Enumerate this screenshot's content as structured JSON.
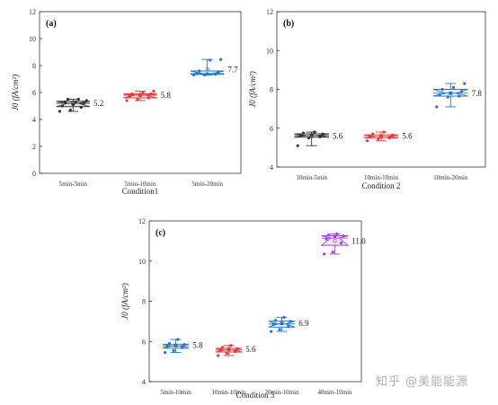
{
  "watermark": "知乎 @美能能源",
  "colors": {
    "black": "#333333",
    "red": "#e03a3a",
    "blue": "#1f77c9",
    "purple": "#9b44d6"
  },
  "chart_data": [
    {
      "type": "box-swarm",
      "panel_label": "(a)",
      "title": "",
      "xlabel": "Condition1",
      "ylabel": "J0 (fA/cm²)",
      "ylim": [
        0,
        12
      ],
      "yticks": [
        0,
        2,
        4,
        6,
        8,
        10,
        12
      ],
      "categories": [
        "5min-5min",
        "5min-10min",
        "5min-20min"
      ],
      "series": [
        {
          "color": "black",
          "mean": 5.2,
          "mean_label": "5.2",
          "points": [
            4.6,
            4.7,
            4.9,
            5.0,
            5.1,
            5.2,
            5.3,
            5.3,
            5.4,
            5.5,
            5.5
          ]
        },
        {
          "color": "red",
          "mean": 5.8,
          "mean_label": "5.8",
          "points": [
            5.4,
            5.5,
            5.6,
            5.7,
            5.8,
            5.9,
            5.9,
            6.0,
            6.1
          ]
        },
        {
          "color": "blue",
          "mean": 7.7,
          "mean_label": "7.7",
          "points": [
            7.3,
            7.3,
            7.35,
            7.4,
            7.4,
            7.5,
            7.6,
            8.4,
            8.45
          ]
        }
      ]
    },
    {
      "type": "box-swarm",
      "panel_label": "(b)",
      "title": "",
      "xlabel": "Condition 2",
      "ylabel": "J0 (fA/cm²)",
      "ylim": [
        4,
        12
      ],
      "yticks": [
        4,
        6,
        8,
        10,
        12
      ],
      "categories": [
        "10min-5min",
        "10min-10min",
        "10min-20min"
      ],
      "series": [
        {
          "color": "black",
          "mean": 5.6,
          "mean_label": "5.6",
          "points": [
            5.1,
            5.5,
            5.55,
            5.6,
            5.65,
            5.7,
            5.75,
            5.8
          ]
        },
        {
          "color": "red",
          "mean": 5.6,
          "mean_label": "5.6",
          "points": [
            5.35,
            5.45,
            5.5,
            5.55,
            5.6,
            5.65,
            5.7,
            5.8
          ]
        },
        {
          "color": "blue",
          "mean": 7.8,
          "mean_label": "7.8",
          "points": [
            7.1,
            7.6,
            7.65,
            7.7,
            7.8,
            7.9,
            8.0,
            8.1,
            8.3
          ]
        }
      ]
    },
    {
      "type": "box-swarm",
      "panel_label": "(c)",
      "title": "",
      "xlabel": "Condition 3",
      "ylabel": "J0 (fA/cm²)",
      "ylim": [
        4,
        12
      ],
      "yticks": [
        4,
        6,
        8,
        10,
        12
      ],
      "categories": [
        "5min-10min",
        "10min-10min",
        "20min-10min",
        "40min-10min"
      ],
      "series": [
        {
          "color": "blue",
          "mean": 5.8,
          "mean_label": "5.8",
          "points": [
            5.45,
            5.55,
            5.7,
            5.75,
            5.8,
            5.85,
            5.9,
            6.1
          ]
        },
        {
          "color": "red",
          "mean": 5.6,
          "mean_label": "5.6",
          "points": [
            5.3,
            5.4,
            5.5,
            5.55,
            5.6,
            5.65,
            5.7,
            5.8
          ]
        },
        {
          "color": "blue",
          "mean": 6.9,
          "mean_label": "6.9",
          "points": [
            6.5,
            6.6,
            6.75,
            6.85,
            6.9,
            7.0,
            7.05,
            7.2
          ]
        },
        {
          "color": "purple",
          "mean": 11.0,
          "mean_label": "11.0",
          "points": [
            10.35,
            10.45,
            10.9,
            11.1,
            11.2,
            11.25,
            11.3,
            11.35
          ]
        }
      ]
    }
  ]
}
